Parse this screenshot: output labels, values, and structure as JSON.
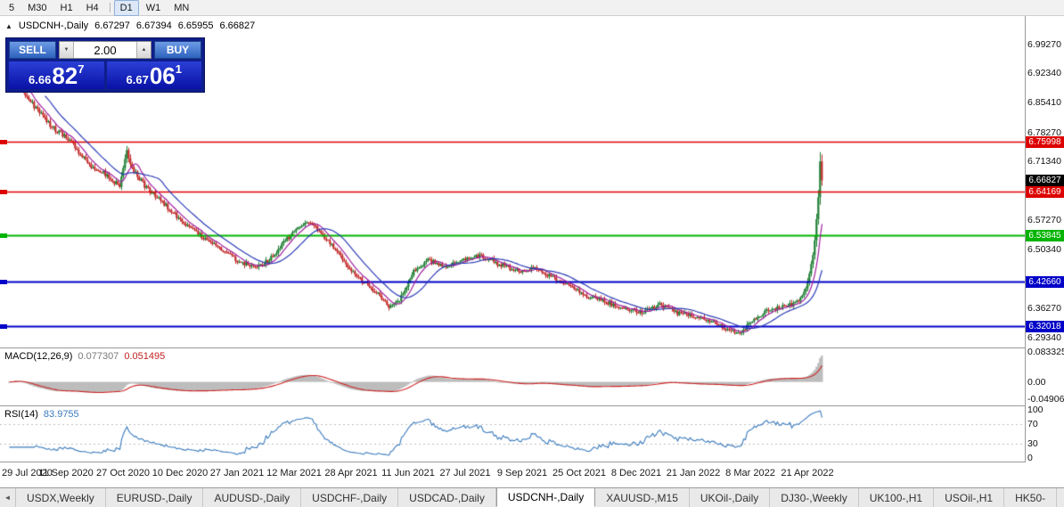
{
  "toolbar": {
    "periods": [
      "5",
      "M30",
      "H1",
      "H4",
      "D1",
      "W1",
      "MN"
    ],
    "active_period": "D1",
    "separator_after": "H4"
  },
  "chart": {
    "header": {
      "arrow": "▲",
      "symbol": "USDCNH-,Daily",
      "open": "6.67297",
      "high": "6.67394",
      "low": "6.65955",
      "close": "6.66827"
    },
    "trade_panel": {
      "sell_label": "SELL",
      "buy_label": "BUY",
      "volume": "2.00",
      "decrease_icon": "▼",
      "increase_icon": "▲",
      "sell_price": {
        "prefix": "6.66",
        "big": "82",
        "sup": "7"
      },
      "buy_price": {
        "prefix": "6.67",
        "big": "06",
        "sup": "1"
      }
    },
    "price_axis_ticks": [
      "6.99270",
      "6.92340",
      "6.85410",
      "6.78270",
      "6.71340",
      "6.57270",
      "6.50340",
      "6.36270",
      "6.29340"
    ],
    "current_price_label": {
      "text": "6.66827",
      "price": 6.66827,
      "bg": "#000000"
    },
    "line_labels": [
      {
        "text": "6.75998",
        "price": 6.75998,
        "bg": "#dd0000"
      },
      {
        "text": "6.64169",
        "price": 6.64169,
        "bg": "#dd0000"
      },
      {
        "text": "6.53845",
        "price": 6.53845,
        "bg": "#00b400"
      },
      {
        "text": "6.42660",
        "price": 6.4266,
        "bg": "#0000c8"
      },
      {
        "text": "6.32018",
        "price": 6.32018,
        "bg": "#0000c8"
      }
    ],
    "date_axis": [
      "29 Jul 2020",
      "11 Sep 2020",
      "27 Oct 2020",
      "10 Dec 2020",
      "27 Jan 2021",
      "12 Mar 2021",
      "28 Apr 2021",
      "11 Jun 2021",
      "27 Jul 2021",
      "9 Sep 2021",
      "25 Oct 2021",
      "8 Dec 2021",
      "21 Jan 2022",
      "8 Mar 2022",
      "21 Apr 2022"
    ]
  },
  "indicators": {
    "macd": {
      "label": "MACD(12,26,9)",
      "value_main": "0.077307",
      "value_signal": "0.051495",
      "scale": [
        {
          "text": "0.083325",
          "value": 0.083325
        },
        {
          "text": "0.00",
          "value": 0
        },
        {
          "text": "-0.049068",
          "value": -0.049068
        }
      ]
    },
    "rsi": {
      "label": "RSI(14)",
      "value": "83.9755",
      "scale": [
        {
          "text": "100",
          "value": 100
        },
        {
          "text": "70",
          "value": 70
        },
        {
          "text": "30",
          "value": 30
        },
        {
          "text": "0",
          "value": 0
        }
      ],
      "levels": [
        30,
        70
      ]
    }
  },
  "tabbar": {
    "scroll_left_icon": "◄",
    "tabs": [
      "USDX,Weekly",
      "EURUSD-,Daily",
      "AUDUSD-,Daily",
      "USDCHF-,Daily",
      "USDCAD-,Daily",
      "USDCNH-,Daily",
      "XAUUSD-,M15",
      "UKOil-,Daily",
      "DJ30-,Weekly",
      "UK100-,H1",
      "USOil-,H1",
      "HK50-"
    ],
    "active_tab": "USDCNH-,Daily"
  },
  "chart_data": {
    "type": "candlestick",
    "symbol": "USDCNH- Daily",
    "ylim": [
      6.27,
      7.06
    ],
    "candle_count": 457,
    "bars_per_label": 32,
    "x_labels": [
      "29 Jul 2020",
      "11 Sep 2020",
      "27 Oct 2020",
      "10 Dec 2020",
      "27 Jan 2021",
      "12 Mar 2021",
      "28 Apr 2021",
      "11 Jun 2021",
      "27 Jul 2021",
      "9 Sep 2021",
      "25 Oct 2021",
      "8 Dec 2021",
      "21 Jan 2022",
      "8 Mar 2022",
      "21 Apr 2022"
    ],
    "price_anchors": [
      [
        0,
        6.903
      ],
      [
        4,
        6.918
      ],
      [
        8,
        6.882
      ],
      [
        14,
        6.845
      ],
      [
        20,
        6.815
      ],
      [
        26,
        6.788
      ],
      [
        32,
        6.772
      ],
      [
        38,
        6.742
      ],
      [
        46,
        6.703
      ],
      [
        52,
        6.69
      ],
      [
        58,
        6.668
      ],
      [
        62,
        6.655
      ],
      [
        66,
        6.735
      ],
      [
        69,
        6.698
      ],
      [
        76,
        6.655
      ],
      [
        84,
        6.625
      ],
      [
        92,
        6.59
      ],
      [
        100,
        6.56
      ],
      [
        108,
        6.535
      ],
      [
        118,
        6.508
      ],
      [
        128,
        6.478
      ],
      [
        138,
        6.458
      ],
      [
        146,
        6.478
      ],
      [
        154,
        6.522
      ],
      [
        162,
        6.552
      ],
      [
        168,
        6.568
      ],
      [
        174,
        6.548
      ],
      [
        182,
        6.508
      ],
      [
        190,
        6.462
      ],
      [
        198,
        6.428
      ],
      [
        206,
        6.402
      ],
      [
        213,
        6.368
      ],
      [
        219,
        6.386
      ],
      [
        227,
        6.452
      ],
      [
        235,
        6.478
      ],
      [
        245,
        6.462
      ],
      [
        255,
        6.478
      ],
      [
        265,
        6.488
      ],
      [
        275,
        6.468
      ],
      [
        285,
        6.452
      ],
      [
        295,
        6.458
      ],
      [
        305,
        6.438
      ],
      [
        315,
        6.415
      ],
      [
        325,
        6.392
      ],
      [
        335,
        6.378
      ],
      [
        345,
        6.365
      ],
      [
        355,
        6.352
      ],
      [
        365,
        6.372
      ],
      [
        375,
        6.352
      ],
      [
        385,
        6.342
      ],
      [
        395,
        6.328
      ],
      [
        403,
        6.312
      ],
      [
        410,
        6.306
      ],
      [
        417,
        6.33
      ],
      [
        424,
        6.356
      ],
      [
        432,
        6.366
      ],
      [
        440,
        6.372
      ],
      [
        445,
        6.392
      ],
      [
        448,
        6.428
      ],
      [
        450,
        6.468
      ],
      [
        452,
        6.52
      ],
      [
        454,
        6.63
      ],
      [
        455,
        6.715
      ],
      [
        456,
        6.66827
      ]
    ],
    "last_candle": {
      "open": 6.67297,
      "high": 6.67394,
      "low": 6.65955,
      "close": 6.66827
    },
    "last_close": 6.66827,
    "hlines": [
      {
        "price": 6.75998,
        "color": "#dd0000",
        "width": 1.5
      },
      {
        "price": 6.64169,
        "color": "#dd0000",
        "width": 1.5
      },
      {
        "price": 6.53845,
        "color": "#00b400",
        "width": 2
      },
      {
        "price": 6.4266,
        "color": "#0000c8",
        "width": 2
      },
      {
        "price": 6.32018,
        "color": "#0000c8",
        "width": 2
      }
    ],
    "moving_averages": [
      {
        "period": 8,
        "color": "#a01ea0"
      },
      {
        "period": 21,
        "color": "#2b3bb5"
      }
    ],
    "macd": {
      "fast": 12,
      "slow": 26,
      "signal": 9,
      "ylim": [
        -0.0655,
        0.0935
      ],
      "current_main": 0.077307,
      "current_signal": 0.051495
    },
    "rsi": {
      "period": 14,
      "ylim": [
        0,
        100
      ],
      "levels": [
        30,
        70
      ],
      "current": 83.9755
    }
  },
  "colors": {
    "candle_up": "#1e7e34",
    "candle_down": "#c22a2a",
    "ma_fast": "#a01ea0",
    "ma_slow": "#2b3bb5",
    "macd_hist": "#b9b9b9",
    "macd_signal": "#cc2222",
    "rsi_line": "#3a7abd",
    "level_dash": "#bdbdbd"
  }
}
